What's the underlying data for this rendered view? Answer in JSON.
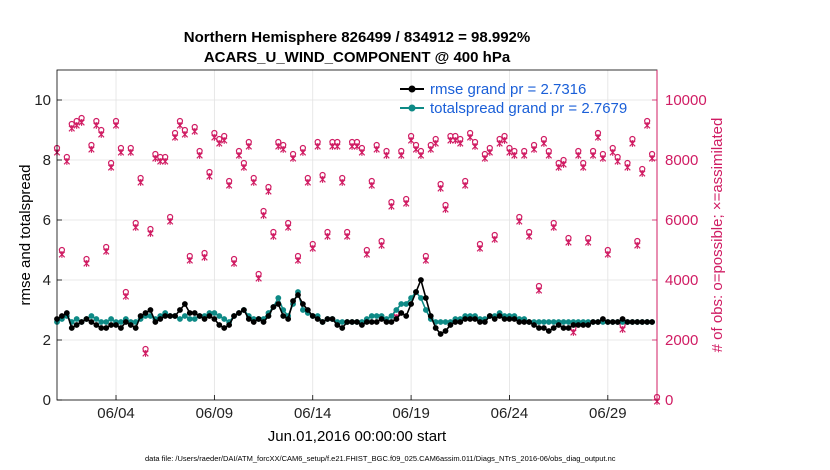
{
  "chart_data": {
    "type": "line",
    "title": [
      "Northern Hemisphere 826499 / 834912 = 98.992%",
      "ACARS_U_WIND_COMPONENT @ 400 hPa"
    ],
    "xlabel": "Jun.01,2016 00:00:00 start",
    "ylabel_left": "rmse and totalspread",
    "ylabel_right": "# of obs: o=possible; ×=assimilated",
    "xlim": [
      1,
      31.5
    ],
    "ylim_left": [
      0,
      11
    ],
    "ylim_right": [
      0,
      11000
    ],
    "x_tick_values": [
      4,
      9,
      14,
      19,
      24,
      29
    ],
    "x_tick_labels": [
      "06/04",
      "06/09",
      "06/14",
      "06/19",
      "06/24",
      "06/29"
    ],
    "y_left_ticks": [
      "0",
      "2",
      "4",
      "6",
      "8",
      "10"
    ],
    "y_right_ticks": [
      "0",
      "2000",
      "4000",
      "6000",
      "8000",
      "10000"
    ],
    "legend": [
      "rmse grand pr = 2.7316",
      "totalspread grand pr = 2.7679"
    ],
    "legend_location": "top-right",
    "grid": true,
    "colors": {
      "rmse": "#000000",
      "spread": "#0e8a86",
      "obs": "#d01c63"
    },
    "series": [
      {
        "name": "rmse",
        "axis": "left",
        "interval_days": 0.25,
        "values": [
          2.7,
          2.8,
          2.9,
          2.4,
          2.5,
          2.6,
          2.7,
          2.6,
          2.5,
          2.4,
          2.4,
          2.5,
          2.5,
          2.4,
          2.6,
          2.5,
          2.4,
          2.8,
          2.9,
          3.0,
          2.6,
          2.7,
          2.8,
          2.8,
          2.8,
          3.0,
          3.2,
          2.9,
          2.9,
          2.8,
          2.7,
          2.8,
          2.7,
          2.5,
          2.4,
          2.5,
          2.8,
          2.9,
          3.0,
          2.7,
          2.6,
          2.7,
          2.6,
          2.8,
          3.1,
          3.2,
          2.8,
          2.7,
          3.3,
          3.5,
          3.2,
          3.0,
          2.8,
          2.7,
          2.6,
          2.7,
          2.7,
          2.5,
          2.4,
          2.6,
          2.6,
          2.6,
          2.5,
          2.6,
          2.6,
          2.6,
          2.7,
          2.6,
          2.6,
          2.7,
          2.9,
          2.8,
          3.2,
          3.6,
          4.0,
          3.4,
          2.8,
          2.4,
          2.2,
          2.3,
          2.5,
          2.6,
          2.6,
          2.7,
          2.7,
          2.7,
          2.6,
          2.6,
          2.8,
          2.7,
          2.8,
          2.7,
          2.7,
          2.7,
          2.6,
          2.6,
          2.6,
          2.5,
          2.4,
          2.4,
          2.3,
          2.4,
          2.5,
          2.4,
          2.4,
          2.5,
          2.5,
          2.5,
          2.5,
          2.6,
          2.6,
          2.7,
          2.6,
          2.6,
          2.6,
          2.7,
          2.6,
          2.6,
          2.6,
          2.6,
          2.6,
          2.6
        ]
      },
      {
        "name": "totalspread",
        "axis": "left",
        "interval_days": 0.25,
        "values": [
          2.6,
          2.7,
          2.8,
          2.6,
          2.7,
          2.6,
          2.7,
          2.8,
          2.7,
          2.6,
          2.6,
          2.7,
          2.6,
          2.6,
          2.7,
          2.6,
          2.6,
          2.7,
          2.8,
          2.8,
          2.7,
          2.8,
          2.9,
          2.8,
          2.8,
          2.7,
          2.8,
          2.7,
          2.7,
          2.8,
          2.8,
          2.9,
          2.9,
          2.8,
          2.7,
          2.6,
          2.8,
          2.9,
          3.0,
          2.8,
          2.7,
          2.7,
          2.7,
          2.9,
          3.1,
          3.4,
          3.0,
          2.8,
          3.2,
          3.6,
          3.0,
          2.9,
          2.8,
          2.8,
          2.6,
          2.7,
          2.7,
          2.6,
          2.6,
          2.6,
          2.6,
          2.6,
          2.6,
          2.7,
          2.8,
          2.8,
          2.8,
          2.7,
          2.8,
          3.0,
          3.2,
          3.2,
          3.4,
          3.6,
          3.4,
          3.0,
          2.7,
          2.6,
          2.6,
          2.6,
          2.6,
          2.7,
          2.7,
          2.8,
          2.8,
          2.8,
          2.7,
          2.7,
          2.8,
          2.8,
          2.9,
          2.8,
          2.8,
          2.8,
          2.7,
          2.7,
          2.6,
          2.6,
          2.6,
          2.6,
          2.6,
          2.6,
          2.6,
          2.6,
          2.6,
          2.6,
          2.6,
          2.6,
          2.6,
          2.6,
          2.6,
          2.6,
          2.6,
          2.6,
          2.6,
          2.6,
          2.6,
          2.6,
          2.6,
          2.6,
          2.6,
          2.6
        ]
      },
      {
        "name": "obs possible / assimilated",
        "axis": "right",
        "interval_days": 0.25,
        "values": [
          8300,
          4900,
          8000,
          9100,
          9200,
          9300,
          4600,
          8400,
          9200,
          8900,
          5000,
          7800,
          9200,
          8300,
          3500,
          8300,
          5800,
          7300,
          1600,
          5600,
          8100,
          8000,
          8000,
          6000,
          8800,
          9200,
          8900,
          4700,
          9000,
          8200,
          4800,
          7500,
          8800,
          8600,
          8700,
          7200,
          4600,
          8200,
          7800,
          8500,
          7300,
          4100,
          6200,
          7000,
          5500,
          8500,
          8400,
          5800,
          8100,
          4700,
          8300,
          7300,
          5100,
          8500,
          7400,
          5500,
          8500,
          8500,
          7300,
          5500,
          8500,
          8500,
          8300,
          4900,
          7200,
          8400,
          5200,
          8200,
          6500,
          2800,
          8200,
          6600,
          8700,
          8400,
          8200,
          4700,
          8400,
          8600,
          7100,
          6400,
          8700,
          8700,
          8600,
          7200,
          8800,
          8500,
          5100,
          8100,
          8300,
          5400,
          8600,
          8700,
          8300,
          8200,
          6000,
          8200,
          5500,
          8400,
          3700,
          8600,
          8200,
          5800,
          7800,
          7900,
          5300,
          2300,
          8200,
          7800,
          5300,
          8200,
          8800,
          8100,
          4900,
          8300,
          8000,
          2400,
          7800,
          8600,
          5200,
          7600,
          9200,
          8100,
          0
        ]
      }
    ]
  },
  "footer": "data file: /Users/raeder/DAI/ATM_forcXX/CAM6_setup/f.e21.FHIST_BGC.f09_025.CAM6assim.011/Diags_NTrS_2016-06/obs_diag_output.nc"
}
